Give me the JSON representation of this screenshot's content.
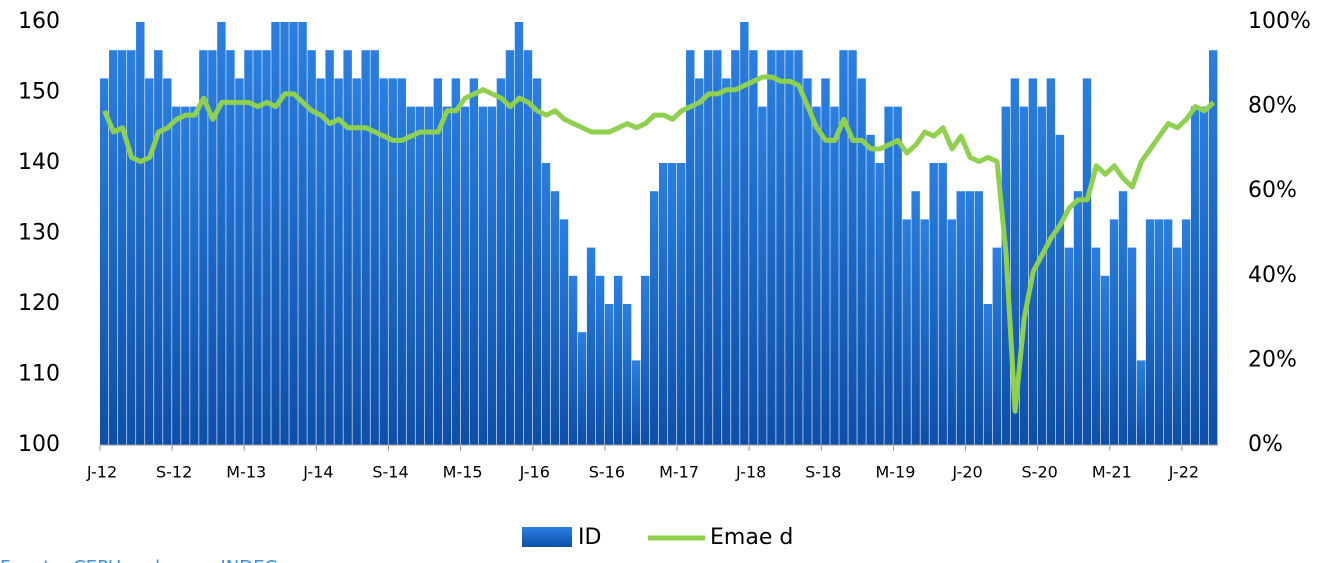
{
  "chart_data": {
    "type": "bar-line",
    "categories": [
      "J-12",
      null,
      null,
      null,
      null,
      null,
      null,
      null,
      "S-12",
      null,
      null,
      null,
      null,
      null,
      null,
      null,
      "M-13",
      null,
      null,
      null,
      null,
      null,
      null,
      null,
      "J-14",
      null,
      null,
      null,
      null,
      null,
      null,
      null,
      "S-14",
      null,
      null,
      null,
      null,
      null,
      null,
      null,
      "M-15",
      null,
      null,
      null,
      null,
      null,
      null,
      null,
      "J-16",
      null,
      null,
      null,
      null,
      null,
      null,
      null,
      "S-16",
      null,
      null,
      null,
      null,
      null,
      null,
      null,
      "M-17",
      null,
      null,
      null,
      null,
      null,
      null,
      null,
      "J-18",
      null,
      null,
      null,
      null,
      null,
      null,
      null,
      "S-18",
      null,
      null,
      null,
      null,
      null,
      null,
      null,
      "M-19",
      null,
      null,
      null,
      null,
      null,
      null,
      null,
      "J-20",
      null,
      null,
      null,
      null,
      null,
      null,
      null,
      "S-20",
      null,
      null,
      null,
      null,
      null,
      null,
      null,
      "M-21",
      null,
      null,
      null,
      null,
      null,
      null,
      null,
      "J-22",
      null,
      null,
      null
    ],
    "series": [
      {
        "name": "ID",
        "color": "#1f6fd1",
        "values": [
          152,
          156,
          156,
          156,
          160,
          152,
          156,
          152,
          148,
          148,
          148,
          156,
          156,
          160,
          156,
          152,
          156,
          156,
          156,
          160,
          160,
          160,
          160,
          156,
          152,
          156,
          152,
          156,
          152,
          156,
          156,
          152,
          152,
          152,
          148,
          148,
          148,
          152,
          148,
          152,
          148,
          152,
          148,
          148,
          152,
          156,
          160,
          156,
          152,
          140,
          136,
          132,
          124,
          116,
          128,
          124,
          120,
          124,
          120,
          112,
          124,
          136,
          140,
          140,
          140,
          156,
          152,
          156,
          156,
          152,
          156,
          160,
          156,
          148,
          156,
          156,
          156,
          156,
          152,
          148,
          152,
          148,
          156,
          156,
          152,
          144,
          140,
          148,
          148,
          132,
          136,
          132,
          140,
          140,
          132,
          136,
          136,
          136,
          120,
          128,
          148,
          152,
          148,
          152,
          148,
          152,
          144,
          128,
          136,
          152,
          128,
          124,
          132,
          136,
          128,
          112,
          132,
          132,
          132,
          128,
          132,
          148,
          148,
          156
        ]
      },
      {
        "name": "Emae d",
        "color": "#8fd14f",
        "axis": "y2",
        "values": [
          79,
          74,
          75,
          68,
          67,
          68,
          74,
          75,
          77,
          78,
          78,
          82,
          77,
          81,
          81,
          81,
          81,
          80,
          81,
          80,
          83,
          83,
          81,
          79,
          78,
          76,
          77,
          75,
          75,
          75,
          74,
          73,
          72,
          72,
          73,
          74,
          74,
          74,
          79,
          79,
          82,
          83,
          84,
          83,
          82,
          80,
          82,
          81,
          79,
          78,
          79,
          77,
          76,
          75,
          74,
          74,
          74,
          75,
          76,
          75,
          76,
          78,
          78,
          77,
          79,
          80,
          81,
          83,
          83,
          84,
          84,
          85,
          86,
          87,
          87,
          86,
          86,
          85,
          80,
          75,
          72,
          72,
          77,
          72,
          72,
          70,
          70,
          71,
          72,
          69,
          71,
          74,
          73,
          75,
          70,
          73,
          68,
          67,
          68,
          67,
          45,
          8,
          30,
          41,
          45,
          49,
          52,
          56,
          58,
          58,
          66,
          64,
          66,
          63,
          61,
          67,
          70,
          73,
          76,
          75,
          77,
          80,
          79,
          81
        ]
      }
    ],
    "ylim": [
      100,
      160
    ],
    "yticks": [
      100,
      110,
      120,
      130,
      140,
      150,
      160
    ],
    "y2lim": [
      0,
      100
    ],
    "y2ticks": [
      {
        "value": 0,
        "label": "0%"
      },
      {
        "value": 20,
        "label": "20%"
      },
      {
        "value": 40,
        "label": "40%"
      },
      {
        "value": 60,
        "label": "60%"
      },
      {
        "value": 80,
        "label": "80%"
      },
      {
        "value": 100,
        "label": "100%"
      }
    ],
    "legend": "bottom",
    "source": "Fuente: CEPU en base a INDEC"
  }
}
